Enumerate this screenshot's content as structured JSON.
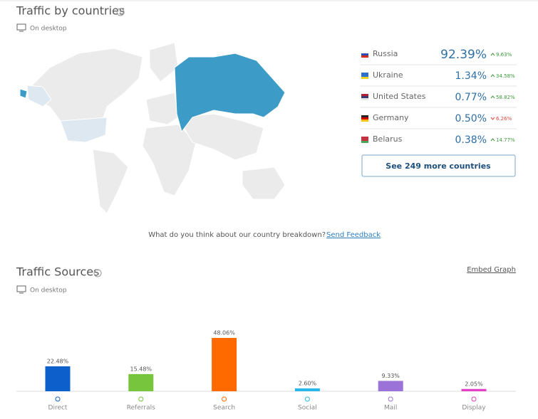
{
  "countries": {
    "title": "Traffic by countries",
    "subtitle": "On desktop",
    "rows": [
      {
        "name": "Russia",
        "share": "92.39%",
        "change": "9.63%",
        "direction": "up"
      },
      {
        "name": "Ukraine",
        "share": "1.34%",
        "change": "34.58%",
        "direction": "up"
      },
      {
        "name": "United States",
        "share": "0.77%",
        "change": "58.82%",
        "direction": "up"
      },
      {
        "name": "Germany",
        "share": "0.50%",
        "change": "6.26%",
        "direction": "down"
      },
      {
        "name": "Belarus",
        "share": "0.38%",
        "change": "14.77%",
        "direction": "up"
      }
    ],
    "more_button": "See 249 more countries",
    "feedback_question": "What do you think about our country breakdown?",
    "feedback_link": "Send Feedback"
  },
  "sources": {
    "title": "Traffic Sources",
    "subtitle": "On desktop",
    "embed": "Embed Graph"
  },
  "chart_data": {
    "type": "bar",
    "categories": [
      "Direct",
      "Referrals",
      "Search",
      "Social",
      "Mail",
      "Display"
    ],
    "values": [
      22.48,
      15.48,
      48.06,
      2.6,
      9.33,
      2.05
    ],
    "value_labels": [
      "22.48%",
      "15.48%",
      "48.06%",
      "2.60%",
      "9.33%",
      "2.05%"
    ],
    "colors": [
      "#0d5fcb",
      "#76c53c",
      "#ff6a00",
      "#29b6e8",
      "#9a72d8",
      "#e43fc8"
    ]
  }
}
